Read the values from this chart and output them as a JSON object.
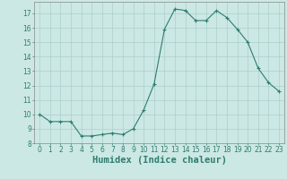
{
  "x": [
    0,
    1,
    2,
    3,
    4,
    5,
    6,
    7,
    8,
    9,
    10,
    11,
    12,
    13,
    14,
    15,
    16,
    17,
    18,
    19,
    20,
    21,
    22,
    23
  ],
  "y": [
    10.0,
    9.5,
    9.5,
    9.5,
    8.5,
    8.5,
    8.6,
    8.7,
    8.6,
    9.0,
    10.3,
    12.1,
    15.9,
    17.3,
    17.2,
    16.5,
    16.5,
    17.2,
    16.7,
    15.9,
    15.0,
    13.2,
    12.2,
    11.6
  ],
  "line_color": "#2d7d6f",
  "marker": "+",
  "marker_size": 3,
  "bg_color": "#cce8e4",
  "grid_color": "#aacfcc",
  "xlabel": "Humidex (Indice chaleur)",
  "xlim": [
    -0.5,
    23.5
  ],
  "ylim": [
    8,
    17.8
  ],
  "yticks": [
    8,
    9,
    10,
    11,
    12,
    13,
    14,
    15,
    16,
    17
  ],
  "xticks": [
    0,
    1,
    2,
    3,
    4,
    5,
    6,
    7,
    8,
    9,
    10,
    11,
    12,
    13,
    14,
    15,
    16,
    17,
    18,
    19,
    20,
    21,
    22,
    23
  ],
  "xtick_labels": [
    "0",
    "1",
    "2",
    "3",
    "4",
    "5",
    "6",
    "7",
    "8",
    "9",
    "10",
    "11",
    "12",
    "13",
    "14",
    "15",
    "16",
    "17",
    "18",
    "19",
    "20",
    "21",
    "22",
    "23"
  ],
  "tick_fontsize": 5.5,
  "xlabel_fontsize": 7.5
}
